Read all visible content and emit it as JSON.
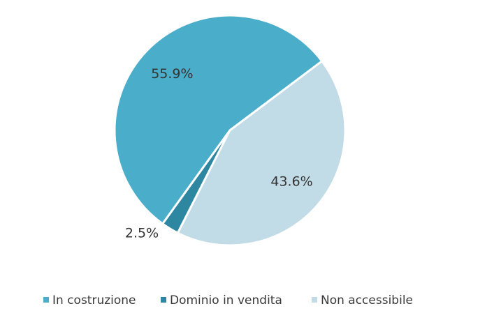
{
  "chart_data": {
    "type": "pie",
    "categories": [
      "In costruzione",
      "Dominio in vendita",
      "Non accessibile"
    ],
    "values": [
      55.9,
      2.5,
      43.6
    ],
    "value_labels": [
      "55.9%",
      "2.5%",
      "43.6%"
    ],
    "colors": [
      "#4aaecb",
      "#2e87a1",
      "#c1dce6"
    ]
  }
}
